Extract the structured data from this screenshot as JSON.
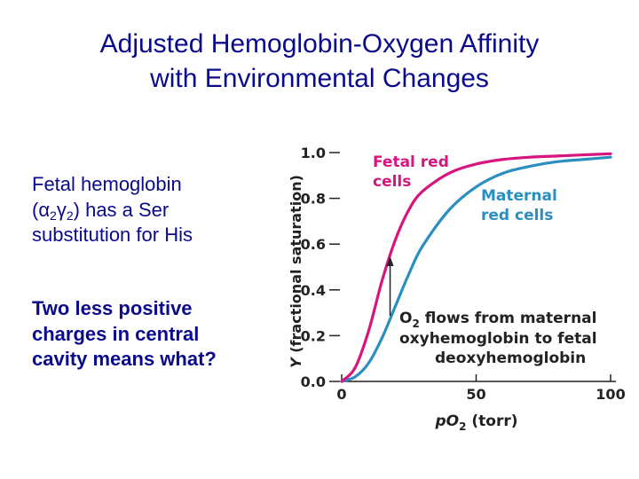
{
  "title": {
    "line1": "Adjusted Hemoglobin-Oxygen Affinity",
    "line2": "with Environmental Changes"
  },
  "body": {
    "p1_l1": "Fetal hemoglobin",
    "p1_l2_pre": "(α",
    "p1_sub1": "2",
    "p1_mid": "γ",
    "p1_sub2": "2",
    "p1_l2_post": ") has a Ser",
    "p1_l3": "substitution for His",
    "p2_l1": "Two less positive",
    "p2_l2": "charges in central",
    "p2_l3": "cavity means what?"
  },
  "colors": {
    "title": "#0a0a8c",
    "fetal": "#d6157e",
    "maternal": "#2a8fc0",
    "axis": "#222222"
  },
  "chart_data": {
    "type": "line",
    "ylabel_italic": "Y",
    "ylabel_rest": "(fractional saturation)",
    "xlabel_pre": "pO",
    "xlabel_sub": "2",
    "xlabel_post": "(torr)",
    "xlim": [
      0,
      100
    ],
    "ylim": [
      0,
      1.0
    ],
    "xticks": [
      "0",
      "50",
      "100"
    ],
    "yticks": [
      "0.0",
      "0.2",
      "0.4",
      "0.6",
      "0.8",
      "1.0"
    ],
    "series": [
      {
        "name": "Fetal red cells",
        "label_lines": [
          "Fetal red",
          "cells"
        ],
        "color": "#d6157e",
        "x": [
          0,
          5,
          10,
          15,
          20,
          25,
          30,
          40,
          50,
          60,
          70,
          80,
          90,
          100
        ],
        "y": [
          0,
          0.06,
          0.22,
          0.44,
          0.62,
          0.75,
          0.83,
          0.91,
          0.95,
          0.97,
          0.98,
          0.985,
          0.99,
          0.995
        ]
      },
      {
        "name": "Maternal red cells",
        "label_lines": [
          "Maternal",
          "red cells"
        ],
        "color": "#2a8fc0",
        "x": [
          0,
          5,
          10,
          15,
          20,
          25,
          30,
          40,
          50,
          60,
          70,
          80,
          90,
          100
        ],
        "y": [
          0,
          0.02,
          0.08,
          0.19,
          0.33,
          0.47,
          0.59,
          0.75,
          0.85,
          0.91,
          0.94,
          0.96,
          0.97,
          0.98
        ]
      }
    ],
    "annotation": {
      "line1_pre": "O",
      "line1_sub": "2",
      "line1_post": "flows from maternal",
      "line2": "oxyhemoglobin to fetal",
      "line3": "deoxyhemoglobin",
      "arrow_x": 18
    }
  }
}
